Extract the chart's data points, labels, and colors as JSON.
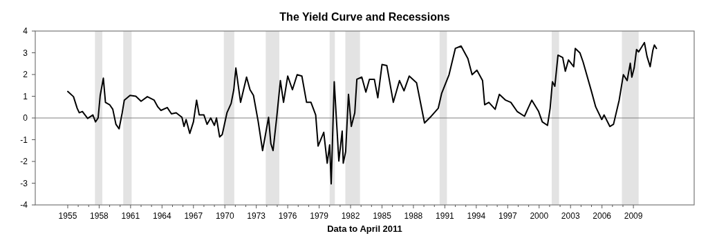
{
  "chart_data": {
    "type": "line",
    "title": "The Yield Curve and Recessions",
    "xlabel": "Data to April 2011",
    "xlim": [
      1951.9,
      2014.8
    ],
    "ylim": [
      -4,
      4
    ],
    "xticks": [
      1955,
      {
        "value": 1956,
        "label": null
      },
      {
        "value": 1957,
        "label": null
      },
      1958,
      {
        "value": 1959,
        "label": null
      },
      {
        "value": 1960,
        "label": null
      },
      1961,
      {
        "value": 1962,
        "label": null
      },
      {
        "value": 1963,
        "label": null
      },
      1964,
      {
        "value": 1965,
        "label": null
      },
      {
        "value": 1966,
        "label": null
      },
      1967,
      {
        "value": 1968,
        "label": null
      },
      {
        "value": 1969,
        "label": null
      },
      1970,
      {
        "value": 1971,
        "label": null
      },
      {
        "value": 1972,
        "label": null
      },
      1973,
      {
        "value": 1974,
        "label": null
      },
      {
        "value": 1975,
        "label": null
      },
      1976,
      {
        "value": 1977,
        "label": null
      },
      {
        "value": 1978,
        "label": null
      },
      1979,
      {
        "value": 1980,
        "label": null
      },
      {
        "value": 1981,
        "label": null
      },
      1982,
      {
        "value": 1983,
        "label": null
      },
      {
        "value": 1984,
        "label": null
      },
      1985,
      {
        "value": 1986,
        "label": null
      },
      {
        "value": 1987,
        "label": null
      },
      1988,
      {
        "value": 1989,
        "label": null
      },
      {
        "value": 1990,
        "label": null
      },
      1991,
      {
        "value": 1992,
        "label": null
      },
      {
        "value": 1993,
        "label": null
      },
      1994,
      {
        "value": 1995,
        "label": null
      },
      {
        "value": 1996,
        "label": null
      },
      1997,
      {
        "value": 1998,
        "label": null
      },
      {
        "value": 1999,
        "label": null
      },
      2000,
      {
        "value": 2001,
        "label": null
      },
      {
        "value": 2002,
        "label": null
      },
      2003,
      {
        "value": 2004,
        "label": null
      },
      {
        "value": 2005,
        "label": null
      },
      2006,
      {
        "value": 2007,
        "label": null
      },
      {
        "value": 2008,
        "label": null
      },
      2009
    ],
    "yticks": [
      -4,
      -3,
      -2,
      -1,
      0,
      1,
      2,
      3,
      4
    ],
    "grid": false,
    "marker": "none",
    "line_style": "solid",
    "ref_lines": [
      {
        "axis": "y",
        "value": 0,
        "label": null,
        "color": "#808080"
      }
    ],
    "bands": [
      {
        "axis": "x",
        "from": 1957.6,
        "to": 1958.3,
        "label": null,
        "color": "#e3e3e3"
      },
      {
        "axis": "x",
        "from": 1960.3,
        "to": 1961.1,
        "label": null,
        "color": "#e3e3e3"
      },
      {
        "axis": "x",
        "from": 1969.9,
        "to": 1970.9,
        "label": null,
        "color": "#e3e3e3"
      },
      {
        "axis": "x",
        "from": 1973.9,
        "to": 1975.2,
        "label": null,
        "color": "#e3e3e3"
      },
      {
        "axis": "x",
        "from": 1980.0,
        "to": 1980.5,
        "label": null,
        "color": "#e3e3e3"
      },
      {
        "axis": "x",
        "from": 1981.5,
        "to": 1982.9,
        "label": null,
        "color": "#e3e3e3"
      },
      {
        "axis": "x",
        "from": 1990.5,
        "to": 1991.2,
        "label": null,
        "color": "#e3e3e3"
      },
      {
        "axis": "x",
        "from": 2001.2,
        "to": 2001.9,
        "label": null,
        "color": "#e3e3e3"
      },
      {
        "axis": "x",
        "from": 2007.9,
        "to": 2009.5,
        "label": null,
        "color": "#e3e3e3"
      }
    ],
    "series": [
      {
        "color": "#000000",
        "x": [
          1955.0,
          1955.55,
          1955.9,
          1956.1,
          1956.4,
          1956.9,
          1957.4,
          1957.65,
          1957.9,
          1958.1,
          1958.4,
          1958.6,
          1959.0,
          1959.3,
          1959.6,
          1959.9,
          1960.2,
          1960.4,
          1960.95,
          1961.5,
          1962.0,
          1962.6,
          1963.25,
          1963.6,
          1963.9,
          1964.5,
          1964.9,
          1965.35,
          1965.9,
          1966.1,
          1966.3,
          1966.65,
          1967.0,
          1967.3,
          1967.55,
          1968.0,
          1968.3,
          1968.65,
          1969.0,
          1969.2,
          1969.5,
          1969.75,
          1970.2,
          1970.6,
          1970.85,
          1971.05,
          1971.5,
          1972.07,
          1972.4,
          1972.73,
          1973.17,
          1973.6,
          1974.17,
          1974.39,
          1974.6,
          1974.95,
          1975.3,
          1975.6,
          1976.0,
          1976.45,
          1976.9,
          1977.35,
          1977.8,
          1978.22,
          1978.67,
          1978.9,
          1979.44,
          1979.77,
          1980.0,
          1980.15,
          1980.44,
          1980.88,
          1981.2,
          1981.3,
          1981.53,
          1981.8,
          1982.07,
          1982.4,
          1982.6,
          1983.07,
          1983.46,
          1983.8,
          1984.27,
          1984.6,
          1985.0,
          1985.46,
          1986.08,
          1986.67,
          1987.1,
          1987.6,
          1988.3,
          1989.06,
          1989.6,
          1990.37,
          1990.7,
          1991.4,
          1992.0,
          1992.55,
          1993.2,
          1993.6,
          1994.06,
          1994.6,
          1994.8,
          1995.2,
          1995.8,
          1996.2,
          1996.8,
          1997.3,
          1997.9,
          1998.6,
          1999.3,
          1999.95,
          2000.3,
          2000.8,
          2001.05,
          2001.27,
          2001.5,
          2001.8,
          2002.25,
          2002.5,
          2002.8,
          2003.3,
          2003.45,
          2003.9,
          2004.2,
          2004.98,
          2005.4,
          2005.98,
          2006.2,
          2006.75,
          2007.1,
          2007.64,
          2008.04,
          2008.4,
          2008.7,
          2008.85,
          2009.07,
          2009.3,
          2009.5,
          2010.05,
          2010.3,
          2010.6,
          2010.85,
          2011.0,
          2011.2
        ],
        "values": [
          1.22,
          0.98,
          0.45,
          0.24,
          0.3,
          -0.02,
          0.14,
          -0.18,
          0,
          1.04,
          1.83,
          0.72,
          0.61,
          0.4,
          -0.29,
          -0.5,
          0.24,
          0.82,
          1.04,
          1.0,
          0.77,
          0.98,
          0.82,
          0.51,
          0.35,
          0.48,
          0.19,
          0.24,
          0.03,
          -0.39,
          -0.07,
          -0.71,
          -0.18,
          0.82,
          0.14,
          0.14,
          -0.29,
          0,
          -0.34,
          0,
          -0.87,
          -0.76,
          0.24,
          0.67,
          1.3,
          2.3,
          0.72,
          1.88,
          1.3,
          1.04,
          -0.13,
          -1.5,
          0.03,
          -1.18,
          -1.5,
          0.03,
          1.72,
          0.72,
          1.93,
          1.3,
          1.99,
          1.93,
          0.72,
          0.72,
          0.14,
          -1.29,
          -0.66,
          -2.08,
          -1.24,
          -3.03,
          1.67,
          -1.98,
          -0.6,
          -2.08,
          -1.55,
          1.09,
          -0.39,
          0.24,
          1.78,
          1.88,
          1.19,
          1.78,
          1.78,
          0.93,
          2.46,
          2.41,
          0.72,
          1.72,
          1.25,
          1.93,
          1.62,
          -0.23,
          0.03,
          0.45,
          1.14,
          1.99,
          3.2,
          3.31,
          2.73,
          1.99,
          2.2,
          1.72,
          0.61,
          0.72,
          0.4,
          1.09,
          0.82,
          0.72,
          0.3,
          0.08,
          0.82,
          0.3,
          -0.18,
          -0.34,
          0.45,
          1.67,
          1.46,
          2.89,
          2.78,
          2.15,
          2.67,
          2.36,
          3.2,
          2.99,
          2.57,
          1.25,
          0.51,
          -0.07,
          0.14,
          -0.39,
          -0.29,
          0.82,
          1.99,
          1.72,
          2.52,
          1.88,
          2.3,
          3.15,
          3.04,
          3.47,
          2.83,
          2.36,
          3.1,
          3.36,
          3.2
        ]
      }
    ]
  }
}
